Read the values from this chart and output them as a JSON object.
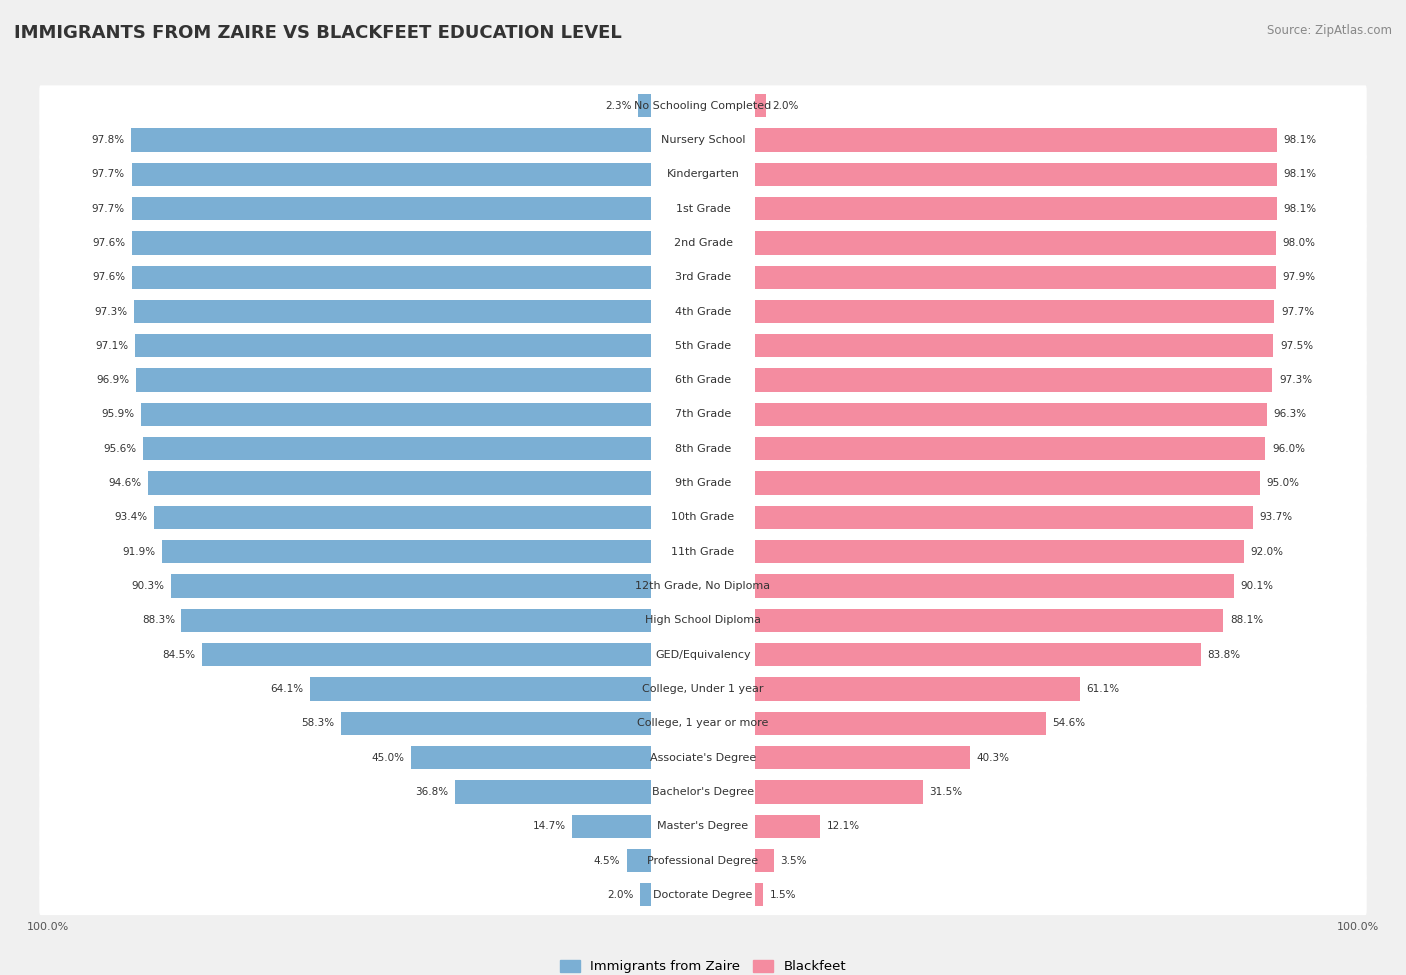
{
  "title": "IMMIGRANTS FROM ZAIRE VS BLACKFEET EDUCATION LEVEL",
  "source": "Source: ZipAtlas.com",
  "categories": [
    "No Schooling Completed",
    "Nursery School",
    "Kindergarten",
    "1st Grade",
    "2nd Grade",
    "3rd Grade",
    "4th Grade",
    "5th Grade",
    "6th Grade",
    "7th Grade",
    "8th Grade",
    "9th Grade",
    "10th Grade",
    "11th Grade",
    "12th Grade, No Diploma",
    "High School Diploma",
    "GED/Equivalency",
    "College, Under 1 year",
    "College, 1 year or more",
    "Associate's Degree",
    "Bachelor's Degree",
    "Master's Degree",
    "Professional Degree",
    "Doctorate Degree"
  ],
  "zaire_values": [
    2.3,
    97.8,
    97.7,
    97.7,
    97.6,
    97.6,
    97.3,
    97.1,
    96.9,
    95.9,
    95.6,
    94.6,
    93.4,
    91.9,
    90.3,
    88.3,
    84.5,
    64.1,
    58.3,
    45.0,
    36.8,
    14.7,
    4.5,
    2.0
  ],
  "blackfeet_values": [
    2.0,
    98.1,
    98.1,
    98.1,
    98.0,
    97.9,
    97.7,
    97.5,
    97.3,
    96.3,
    96.0,
    95.0,
    93.7,
    92.0,
    90.1,
    88.1,
    83.8,
    61.1,
    54.6,
    40.3,
    31.5,
    12.1,
    3.5,
    1.5
  ],
  "zaire_color": "#7BAFD4",
  "blackfeet_color": "#F48CA0",
  "bg_color": "#f0f0f0",
  "bar_bg_color": "#ffffff",
  "legend_zaire": "Immigrants from Zaire",
  "legend_blackfeet": "Blackfeet",
  "title_fontsize": 13,
  "source_fontsize": 8.5,
  "label_fontsize": 8,
  "value_fontsize": 7.5
}
